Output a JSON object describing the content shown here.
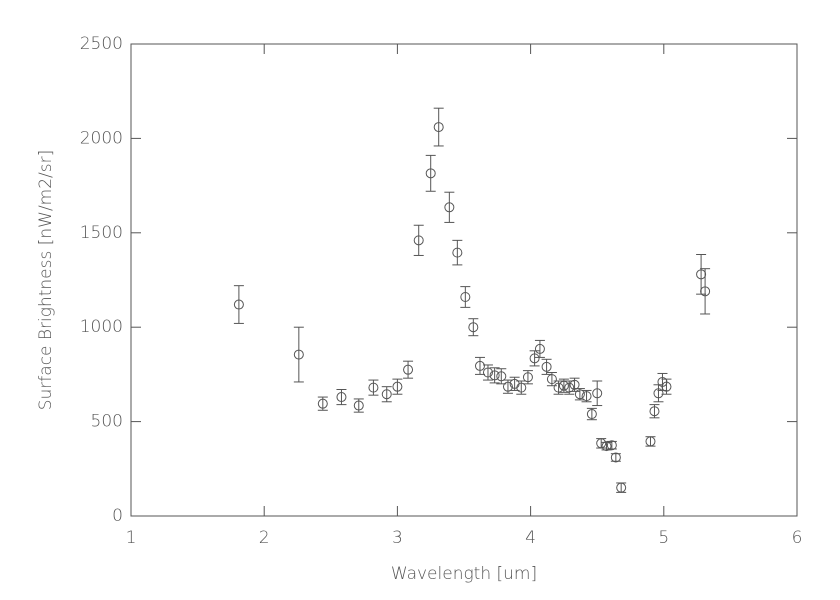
{
  "chart_data": {
    "type": "scatter",
    "xlabel": "Wavelength [um]",
    "ylabel": "Surface Brightness [nW/m2/sr]",
    "color": "#555555",
    "xlim": [
      1,
      6
    ],
    "xticks": [
      1,
      2,
      3,
      4,
      5,
      6
    ],
    "ylim": [
      0,
      2500
    ],
    "yticks": [
      0,
      500,
      1000,
      1500,
      2000,
      2500
    ],
    "x": [
      1.81,
      2.26,
      2.44,
      2.58,
      2.71,
      2.82,
      2.92,
      3.0,
      3.08,
      3.16,
      3.25,
      3.31,
      3.39,
      3.45,
      3.51,
      3.57,
      3.62,
      3.68,
      3.73,
      3.78,
      3.83,
      3.88,
      3.93,
      3.98,
      4.03,
      4.07,
      4.12,
      4.16,
      4.21,
      4.25,
      4.29,
      4.33,
      4.37,
      4.42,
      4.46,
      4.5,
      4.53,
      4.57,
      4.61,
      4.64,
      4.68,
      4.9,
      4.93,
      4.96,
      4.99,
      5.02,
      5.28,
      5.31
    ],
    "values": [
      1120,
      855,
      595,
      630,
      585,
      680,
      645,
      685,
      775,
      1460,
      1815,
      2060,
      1635,
      1395,
      1160,
      1000,
      795,
      760,
      745,
      740,
      685,
      700,
      680,
      735,
      835,
      885,
      790,
      725,
      680,
      690,
      680,
      695,
      645,
      635,
      540,
      650,
      385,
      370,
      375,
      310,
      150,
      395,
      555,
      650,
      710,
      685,
      1280,
      1190
    ],
    "errors": [
      100,
      145,
      35,
      40,
      35,
      40,
      40,
      40,
      45,
      80,
      95,
      100,
      80,
      65,
      55,
      45,
      45,
      40,
      40,
      40,
      35,
      35,
      35,
      35,
      40,
      45,
      40,
      35,
      35,
      35,
      35,
      35,
      30,
      30,
      30,
      65,
      25,
      20,
      20,
      20,
      25,
      25,
      35,
      45,
      45,
      40,
      105,
      120
    ]
  }
}
